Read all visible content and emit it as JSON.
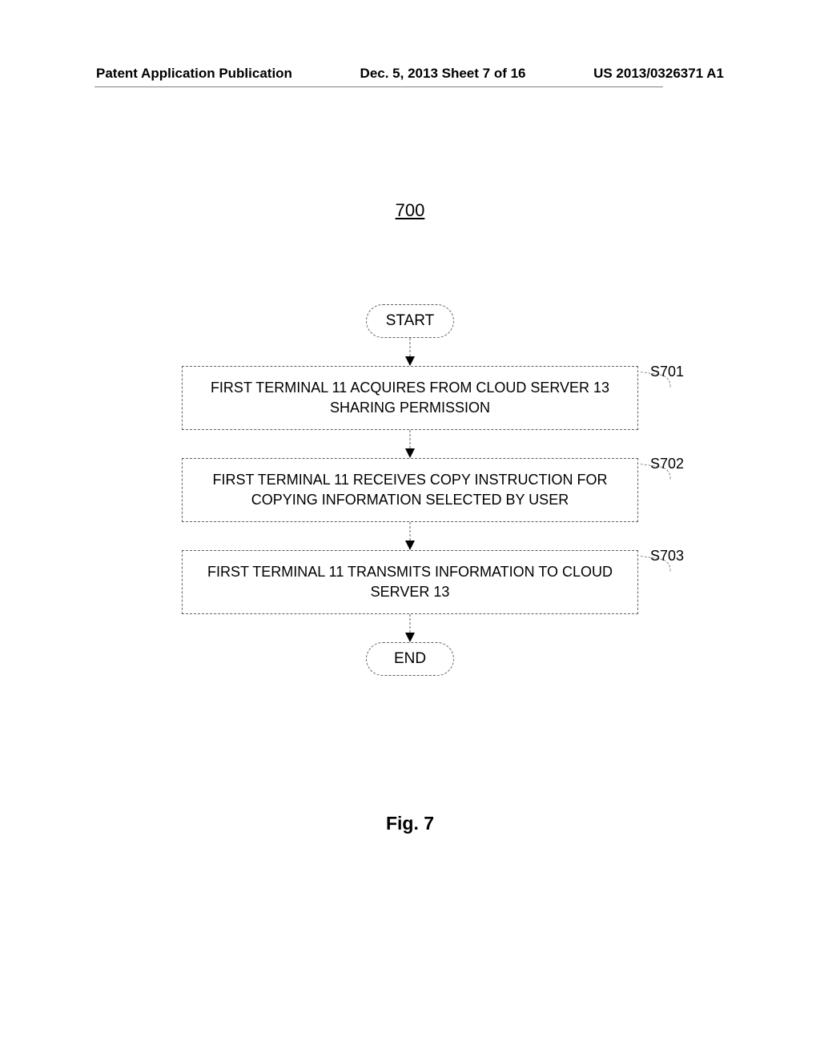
{
  "header": {
    "left": "Patent Application Publication",
    "center": "Dec. 5, 2013  Sheet 7 of 16",
    "right": "US 2013/0326371 A1"
  },
  "figure_number": "700",
  "flowchart": {
    "type": "flowchart",
    "background_color": "#ffffff",
    "border_color": "#606060",
    "border_style": "dashed",
    "text_color": "#000000",
    "font_size": 18,
    "terminator_radius": 21,
    "nodes": [
      {
        "id": "start",
        "type": "terminator",
        "label": "START"
      },
      {
        "id": "s701",
        "type": "process",
        "label": "FIRST TERMINAL 11 ACQUIRES FROM CLOUD SERVER 13 SHARING PERMISSION",
        "step": "S701"
      },
      {
        "id": "s702",
        "type": "process",
        "label": "FIRST TERMINAL 11 RECEIVES COPY INSTRUCTION FOR COPYING INFORMATION SELECTED BY USER",
        "step": "S702"
      },
      {
        "id": "s703",
        "type": "process",
        "label": "FIRST TERMINAL 11 TRANSMITS INFORMATION TO CLOUD SERVER 13",
        "step": "S703"
      },
      {
        "id": "end",
        "type": "terminator",
        "label": "END"
      }
    ],
    "edges": [
      {
        "from": "start",
        "to": "s701"
      },
      {
        "from": "s701",
        "to": "s702"
      },
      {
        "from": "s702",
        "to": "s703"
      },
      {
        "from": "s703",
        "to": "end"
      }
    ]
  },
  "figure_caption": "Fig. 7"
}
